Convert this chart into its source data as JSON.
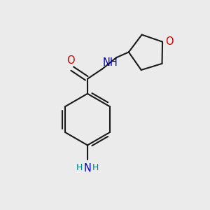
{
  "bg_color": "#ebebeb",
  "bond_color": "#1a1a1a",
  "bond_width": 1.5,
  "O_color": "#cc0000",
  "N_color": "#0000bb",
  "NH2_color": "#008080",
  "label_fontsize": 10.5,
  "fig_size": [
    3.0,
    3.0
  ],
  "dpi": 100,
  "xlim": [
    0,
    10
  ],
  "ylim": [
    0,
    10
  ]
}
